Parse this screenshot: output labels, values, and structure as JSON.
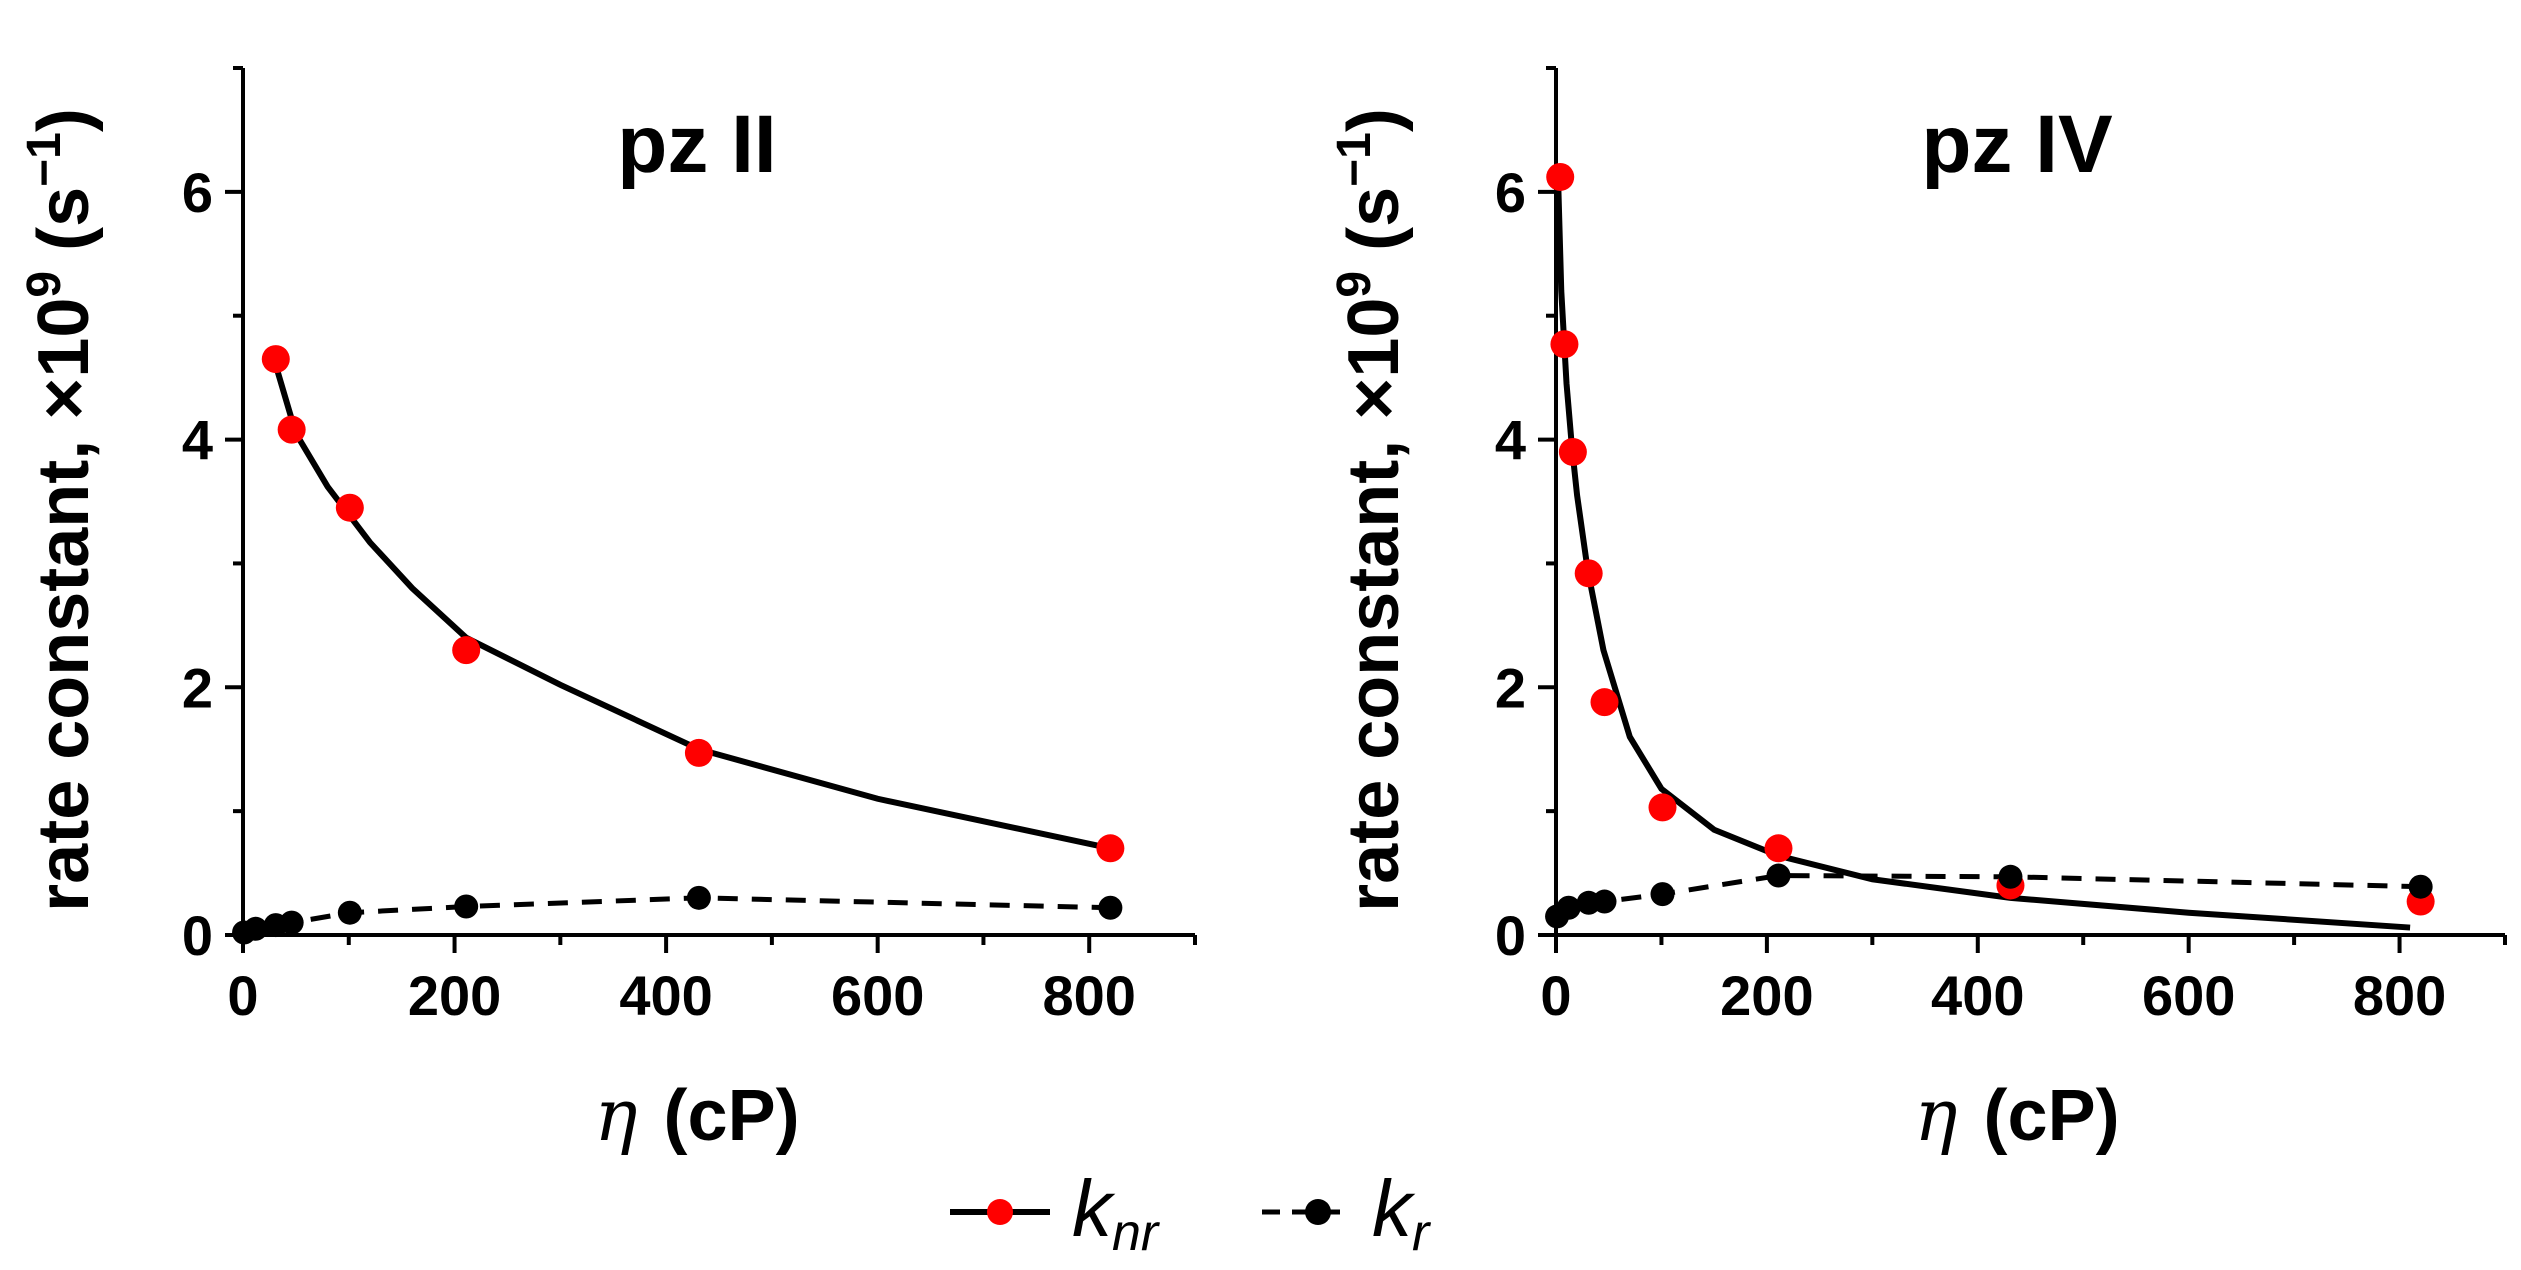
{
  "chart_data": [
    {
      "type": "scatter",
      "title": "pz II",
      "xlabel_symbol": "η",
      "xlabel_unit": "(cP)",
      "ylabel_main": "rate constant, ×10",
      "ylabel_exp": "9",
      "ylabel_unit_open": "(s",
      "ylabel_unit_exp": "−1",
      "ylabel_unit_close": ")",
      "xlim": [
        0,
        900
      ],
      "ylim": [
        0,
        7
      ],
      "xticks": [
        0,
        200,
        400,
        600,
        800
      ],
      "yticks": [
        0,
        2,
        4,
        6
      ],
      "series": [
        {
          "name": "knr",
          "marker_color": "#ff0000",
          "line_style": "solid",
          "x": [
            31,
            46,
            101,
            211,
            431,
            820
          ],
          "y": [
            4.65,
            4.08,
            3.45,
            2.3,
            1.47,
            0.7
          ],
          "fit": {
            "x": [
              31,
              50,
              80,
              120,
              160,
              211,
              300,
              431,
              600,
              820
            ],
            "y": [
              4.6,
              4.05,
              3.62,
              3.17,
              2.8,
              2.4,
              2.02,
              1.5,
              1.1,
              0.7
            ]
          }
        },
        {
          "name": "kr",
          "marker_color": "#000000",
          "line_style": "dashed",
          "x": [
            1,
            12,
            31,
            46,
            101,
            211,
            431,
            820
          ],
          "y": [
            0.02,
            0.05,
            0.08,
            0.1,
            0.18,
            0.23,
            0.3,
            0.22
          ]
        }
      ]
    },
    {
      "type": "scatter",
      "title": "pz IV",
      "xlabel_symbol": "η",
      "xlabel_unit": "(cP)",
      "ylabel_main": "rate constant, ×10",
      "ylabel_exp": "9",
      "ylabel_unit_open": "(s",
      "ylabel_unit_exp": "−1",
      "ylabel_unit_close": ")",
      "xlim": [
        0,
        900
      ],
      "ylim": [
        0,
        7
      ],
      "xticks": [
        0,
        200,
        400,
        600,
        800
      ],
      "yticks": [
        0,
        2,
        4,
        6
      ],
      "series": [
        {
          "name": "knr",
          "marker_color": "#ff0000",
          "line_style": "solid",
          "x": [
            4,
            8,
            16,
            31,
            46,
            101,
            211,
            431,
            820
          ],
          "y": [
            6.12,
            4.77,
            3.9,
            2.92,
            1.88,
            1.03,
            0.7,
            0.4,
            0.27
          ],
          "fit": {
            "x": [
              2,
              5,
              10,
              15,
              20,
              30,
              45,
              70,
              100,
              150,
              211,
              300,
              431,
              600,
              810
            ],
            "y": [
              6.1,
              5.2,
              4.45,
              3.95,
              3.55,
              2.95,
              2.3,
              1.6,
              1.18,
              0.85,
              0.64,
              0.45,
              0.3,
              0.18,
              0.06
            ]
          }
        },
        {
          "name": "kr",
          "marker_color": "#000000",
          "line_style": "dashed",
          "x": [
            1,
            12,
            31,
            46,
            101,
            211,
            431,
            820
          ],
          "y": [
            0.15,
            0.22,
            0.26,
            0.27,
            0.33,
            0.48,
            0.47,
            0.39
          ]
        }
      ]
    }
  ],
  "legend": {
    "items": [
      {
        "symbol": "k",
        "subscript": "nr",
        "marker_color": "#ff0000",
        "line_style": "solid"
      },
      {
        "symbol": "k",
        "subscript": "r",
        "marker_color": "#000000",
        "line_style": "dashed"
      }
    ]
  }
}
